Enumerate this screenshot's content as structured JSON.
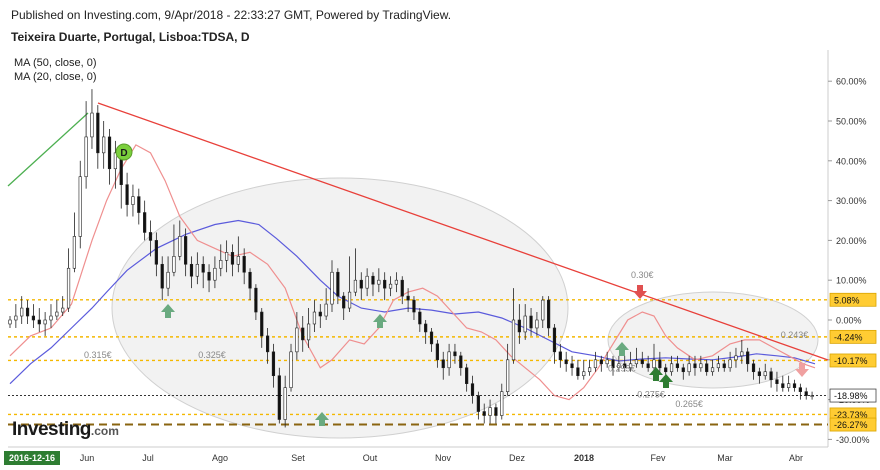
{
  "header": {
    "published": "Published on Investing.com, 9/Apr/2018 - 22:33:27 GMT, Powered by TradingView.",
    "title": "Teixeira Duarte, Portugal, Lisboa:TDSA, D"
  },
  "legend": {
    "ma50": "MA (50, close, 0)",
    "ma20": "MA (20, close, 0)"
  },
  "logo": {
    "word": "Investing",
    "domain": ".com"
  },
  "colors": {
    "candle_up": "#ffffff",
    "candle_down": "#111111",
    "ma50": "#5b5bdc",
    "ma20": "#ef8f8f",
    "trend_down": "#e8403a",
    "trend_up": "#4caf50",
    "level_dotted": "#f4b800",
    "level_dashed": "#8a6410",
    "label_bg": "#ffcc33",
    "date_label_bg": "#2e7d32",
    "arrow_green": "#6aaa80",
    "arrow_darkgreen": "#2e7d32",
    "arrow_red": "#e05050",
    "arrow_pink": "#f0a0a0",
    "marker_d": "#7bcf3c"
  },
  "chart_data": {
    "type": "candlestick",
    "x_labels": [
      "2016-12-16",
      "Jun",
      "Jul",
      "Ago",
      "Set",
      "Out",
      "Nov",
      "Dez",
      "2018",
      "Fev",
      "Mar",
      "Abr"
    ],
    "highlighted_x_label": "2016-12-16",
    "y_axis": {
      "unit": "percent",
      "ticks": [
        60,
        50,
        40,
        30,
        20,
        10,
        0,
        -10,
        -20,
        -30
      ],
      "tick_labels": [
        "60.00%",
        "50.00%",
        "40.00%",
        "30.00%",
        "20.00%",
        "10.00%",
        "0.00%",
        "-10.00%",
        "-20.00%",
        "-30.00%"
      ],
      "range": [
        -31.5,
        63
      ]
    },
    "y_axis_highlight_labels": [
      {
        "value": 5.08,
        "text": "5.08%",
        "style": "yellow"
      },
      {
        "value": -4.24,
        "text": "-4.24%",
        "style": "yellow"
      },
      {
        "value": -10.17,
        "text": "-10.17%",
        "style": "yellow"
      },
      {
        "value": -18.98,
        "text": "-18.98%",
        "style": "white"
      },
      {
        "value": -23.73,
        "text": "-23.73%",
        "style": "yellow"
      },
      {
        "value": -26.27,
        "text": "-26.27%",
        "style": "yellow"
      }
    ],
    "horizontal_levels": [
      {
        "value": 5.08,
        "style": "dotted"
      },
      {
        "value": -4.24,
        "style": "dotted"
      },
      {
        "value": -10.17,
        "style": "dotted"
      },
      {
        "value": -18.98,
        "style": "dotted-black"
      },
      {
        "value": -23.73,
        "style": "dotted"
      },
      {
        "value": -26.27,
        "style": "dashed"
      }
    ],
    "annotations": [
      {
        "text": "0.30€",
        "x": 216,
        "y": 10.5
      },
      {
        "text": "0.315€",
        "x": 30,
        "y": -9.5
      },
      {
        "text": "0.325€",
        "x": 69,
        "y": -9.5
      },
      {
        "text": "0.295€",
        "x": 209,
        "y": -13
      },
      {
        "text": "0.275€",
        "x": 219,
        "y": -19.5
      },
      {
        "text": "0.265€",
        "x": 232,
        "y": -21.8
      },
      {
        "text": "0.243€",
        "x": 268,
        "y": -4.5
      }
    ],
    "series": {
      "ma50": [
        [
          0,
          -16
        ],
        [
          7,
          -11
        ],
        [
          14,
          -7
        ],
        [
          21,
          -2
        ],
        [
          28,
          3
        ],
        [
          33,
          7
        ],
        [
          40,
          12.5
        ],
        [
          50,
          18
        ],
        [
          60,
          21.5
        ],
        [
          70,
          24
        ],
        [
          78,
          25
        ],
        [
          85,
          24
        ],
        [
          91,
          20.5
        ],
        [
          98,
          16
        ],
        [
          106,
          10
        ],
        [
          112,
          6
        ],
        [
          120,
          3
        ],
        [
          128,
          2
        ],
        [
          136,
          3
        ],
        [
          144,
          2.5
        ],
        [
          152,
          1.5
        ],
        [
          160,
          2
        ],
        [
          168,
          0.5
        ],
        [
          176,
          -2
        ],
        [
          184,
          -5
        ],
        [
          192,
          -8
        ],
        [
          200,
          -9
        ],
        [
          208,
          -10.3
        ],
        [
          216,
          -9.8
        ],
        [
          224,
          -9.5
        ],
        [
          232,
          -9.8
        ],
        [
          240,
          -10
        ],
        [
          248,
          -9.3
        ],
        [
          255,
          -8.5
        ],
        [
          262,
          -9
        ],
        [
          268,
          -9.5
        ],
        [
          275,
          -11
        ]
      ],
      "ma20": [
        [
          0,
          -9
        ],
        [
          7,
          -4
        ],
        [
          14,
          -2
        ],
        [
          21,
          4
        ],
        [
          28,
          20
        ],
        [
          33,
          30
        ],
        [
          38,
          38
        ],
        [
          43,
          44
        ],
        [
          48,
          42
        ],
        [
          53,
          35
        ],
        [
          58,
          26
        ],
        [
          64,
          20
        ],
        [
          70,
          18
        ],
        [
          76,
          16
        ],
        [
          82,
          17
        ],
        [
          88,
          14
        ],
        [
          94,
          8
        ],
        [
          100,
          -4
        ],
        [
          106,
          -12
        ],
        [
          110,
          -10
        ],
        [
          116,
          -5
        ],
        [
          121,
          -6
        ],
        [
          126,
          -2
        ],
        [
          131,
          5
        ],
        [
          136,
          7
        ],
        [
          141,
          8
        ],
        [
          146,
          6
        ],
        [
          151,
          2
        ],
        [
          156,
          -2
        ],
        [
          161,
          -3
        ],
        [
          166,
          -5
        ],
        [
          171,
          -9
        ],
        [
          176,
          -12
        ],
        [
          181,
          -15
        ],
        [
          186,
          -19
        ],
        [
          191,
          -20
        ],
        [
          196,
          -17
        ],
        [
          201,
          -12
        ],
        [
          206,
          -6
        ],
        [
          211,
          0
        ],
        [
          216,
          2
        ],
        [
          220,
          1
        ],
        [
          224,
          -4
        ],
        [
          228,
          -7
        ],
        [
          234,
          -10
        ],
        [
          240,
          -9
        ],
        [
          246,
          -6
        ],
        [
          251,
          -5
        ],
        [
          256,
          -5
        ],
        [
          261,
          -7
        ],
        [
          266,
          -9
        ],
        [
          271,
          -11
        ],
        [
          275,
          -12
        ]
      ]
    },
    "candles": [
      [
        0,
        -1,
        0,
        1,
        -2
      ],
      [
        2,
        0,
        1,
        4,
        -2
      ],
      [
        4,
        1,
        3,
        6,
        -1
      ],
      [
        6,
        3,
        1,
        5,
        -1
      ],
      [
        8,
        1,
        0,
        4,
        -2
      ],
      [
        10,
        0,
        -1,
        3,
        -3
      ],
      [
        12,
        -1,
        0,
        2,
        -4
      ],
      [
        14,
        0,
        1,
        4,
        -2
      ],
      [
        16,
        1,
        2,
        5,
        0
      ],
      [
        18,
        2,
        3,
        6,
        1
      ],
      [
        20,
        3,
        13,
        18,
        2
      ],
      [
        22,
        13,
        21,
        27,
        12
      ],
      [
        24,
        21,
        36,
        40,
        18
      ],
      [
        26,
        36,
        46,
        55,
        33
      ],
      [
        28,
        46,
        52,
        58,
        43
      ],
      [
        30,
        52,
        42,
        54,
        38
      ],
      [
        32,
        42,
        46,
        50,
        38
      ],
      [
        34,
        46,
        38,
        48,
        34
      ],
      [
        36,
        38,
        42,
        45,
        33
      ],
      [
        38,
        42,
        34,
        44,
        28
      ],
      [
        40,
        34,
        29,
        37,
        26
      ],
      [
        42,
        29,
        31,
        34,
        26
      ],
      [
        44,
        31,
        27,
        33,
        24
      ],
      [
        46,
        27,
        22,
        30,
        20
      ],
      [
        48,
        22,
        20,
        25,
        16
      ],
      [
        50,
        20,
        14,
        22,
        11
      ],
      [
        52,
        14,
        8,
        16,
        5
      ],
      [
        54,
        8,
        12,
        16,
        6
      ],
      [
        56,
        12,
        16,
        24,
        11
      ],
      [
        58,
        16,
        21,
        25,
        15
      ],
      [
        60,
        21,
        14,
        23,
        11
      ],
      [
        62,
        14,
        11,
        16,
        8
      ],
      [
        64,
        11,
        14,
        17,
        9
      ],
      [
        66,
        14,
        12,
        16,
        8
      ],
      [
        68,
        12,
        10,
        14,
        7
      ],
      [
        70,
        10,
        13,
        16,
        8
      ],
      [
        72,
        13,
        15,
        19,
        11
      ],
      [
        74,
        15,
        17,
        20,
        12
      ],
      [
        76,
        17,
        14,
        19,
        11
      ],
      [
        78,
        14,
        16,
        21,
        12
      ],
      [
        80,
        16,
        12,
        18,
        9
      ],
      [
        82,
        12,
        8,
        13,
        5
      ],
      [
        84,
        8,
        2,
        9,
        0
      ],
      [
        86,
        2,
        -4,
        3,
        -7
      ],
      [
        88,
        -4,
        -8,
        -2,
        -11
      ],
      [
        90,
        -8,
        -14,
        -6,
        -17
      ],
      [
        92,
        -14,
        -25,
        -12,
        -26
      ],
      [
        94,
        -25,
        -17,
        -14,
        -27
      ],
      [
        96,
        -17,
        -8,
        -6,
        -18
      ],
      [
        98,
        -8,
        -2,
        2,
        -10
      ],
      [
        100,
        -2,
        -5,
        1,
        -8
      ],
      [
        102,
        -5,
        -1,
        3,
        -7
      ],
      [
        104,
        -1,
        2,
        5,
        -3
      ],
      [
        106,
        2,
        1,
        4,
        -2
      ],
      [
        108,
        1,
        4,
        8,
        0
      ],
      [
        110,
        4,
        12,
        15,
        2
      ],
      [
        112,
        12,
        6,
        13,
        4
      ],
      [
        114,
        6,
        3,
        7,
        0
      ],
      [
        116,
        3,
        7,
        16,
        2
      ],
      [
        118,
        7,
        10,
        18,
        6
      ],
      [
        120,
        10,
        8,
        12,
        5
      ],
      [
        122,
        8,
        11,
        13,
        6
      ],
      [
        124,
        11,
        9,
        12,
        6
      ],
      [
        126,
        9,
        10,
        13,
        7
      ],
      [
        128,
        10,
        8,
        12,
        5
      ],
      [
        130,
        8,
        9,
        11,
        6
      ],
      [
        132,
        9,
        10,
        12,
        7
      ],
      [
        134,
        10,
        6,
        11,
        4
      ],
      [
        136,
        6,
        5,
        8,
        2
      ],
      [
        138,
        5,
        2,
        6,
        0
      ],
      [
        140,
        2,
        -1,
        3,
        -3
      ],
      [
        142,
        -1,
        -3,
        0,
        -6
      ],
      [
        144,
        -3,
        -6,
        -2,
        -8
      ],
      [
        146,
        -6,
        -10,
        -5,
        -12
      ],
      [
        148,
        -10,
        -12,
        -8,
        -15
      ],
      [
        150,
        -12,
        -8,
        -6,
        -14
      ],
      [
        152,
        -8,
        -9,
        -6,
        -11
      ],
      [
        154,
        -9,
        -12,
        -8,
        -14
      ],
      [
        156,
        -12,
        -16,
        -11,
        -18
      ],
      [
        158,
        -16,
        -19,
        -14,
        -21
      ],
      [
        160,
        -19,
        -23,
        -18,
        -25
      ],
      [
        162,
        -23,
        -24,
        -21,
        -26
      ],
      [
        164,
        -24,
        -22,
        -20,
        -26
      ],
      [
        166,
        -22,
        -24,
        -21,
        -26
      ],
      [
        168,
        -24,
        -18,
        -16,
        -25
      ],
      [
        170,
        -18,
        -10,
        -6,
        -19
      ],
      [
        172,
        -10,
        0,
        8,
        -11
      ],
      [
        174,
        0,
        -3,
        4,
        -6
      ],
      [
        176,
        -3,
        1,
        4,
        -5
      ],
      [
        178,
        1,
        -2,
        3,
        -4
      ],
      [
        180,
        -2,
        0,
        2,
        -4
      ],
      [
        182,
        0,
        5,
        6,
        -2
      ],
      [
        184,
        5,
        -2,
        6,
        -4
      ],
      [
        186,
        -2,
        -8,
        -1,
        -11
      ],
      [
        188,
        -8,
        -10,
        -6,
        -12
      ],
      [
        190,
        -10,
        -11,
        -8,
        -13
      ],
      [
        192,
        -11,
        -12,
        -9,
        -14
      ],
      [
        194,
        -12,
        -14,
        -10,
        -15
      ],
      [
        196,
        -14,
        -13,
        -10,
        -15
      ],
      [
        198,
        -13,
        -12,
        -10,
        -14
      ],
      [
        200,
        -12,
        -10,
        -8,
        -13
      ],
      [
        202,
        -10,
        -11,
        -9,
        -13
      ],
      [
        204,
        -11,
        -10,
        -8,
        -12
      ],
      [
        206,
        -10,
        -12,
        -9,
        -14
      ],
      [
        208,
        -12,
        -11,
        -9,
        -13
      ],
      [
        210,
        -11,
        -12,
        -9,
        -13
      ],
      [
        212,
        -12,
        -11,
        -8,
        -13
      ],
      [
        214,
        -11,
        -10,
        -7,
        -12
      ],
      [
        216,
        -10,
        -11,
        -8,
        -12
      ],
      [
        218,
        -11,
        -12,
        -9,
        -13
      ],
      [
        220,
        -12,
        -10,
        -6,
        -13
      ],
      [
        222,
        -10,
        -12,
        -8,
        -13
      ],
      [
        224,
        -12,
        -13,
        -11,
        -14
      ],
      [
        226,
        -13,
        -11,
        -9,
        -14
      ],
      [
        228,
        -11,
        -12,
        -9,
        -13
      ],
      [
        230,
        -12,
        -13,
        -11,
        -15
      ],
      [
        232,
        -13,
        -11,
        -9,
        -14
      ],
      [
        234,
        -11,
        -12,
        -9,
        -14
      ],
      [
        236,
        -12,
        -11,
        -9,
        -13
      ],
      [
        238,
        -11,
        -13,
        -10,
        -14
      ],
      [
        240,
        -13,
        -12,
        -10,
        -14
      ],
      [
        242,
        -12,
        -11,
        -9,
        -13
      ],
      [
        244,
        -11,
        -12,
        -10,
        -13
      ],
      [
        246,
        -12,
        -10,
        -8,
        -13
      ],
      [
        248,
        -10,
        -9,
        -7,
        -12
      ],
      [
        250,
        -9,
        -8,
        -5,
        -11
      ],
      [
        252,
        -8,
        -11,
        -7,
        -13
      ],
      [
        254,
        -11,
        -13,
        -10,
        -15
      ],
      [
        256,
        -13,
        -14,
        -12,
        -16
      ],
      [
        258,
        -14,
        -13,
        -11,
        -15
      ],
      [
        260,
        -13,
        -15,
        -12,
        -17
      ],
      [
        262,
        -15,
        -16,
        -13,
        -18
      ],
      [
        264,
        -16,
        -17,
        -14,
        -18
      ],
      [
        266,
        -17,
        -16,
        -14,
        -18
      ],
      [
        268,
        -16,
        -17,
        -15,
        -18
      ],
      [
        270,
        -17,
        -18,
        -16,
        -20
      ],
      [
        272,
        -18,
        -19,
        -17,
        -20
      ],
      [
        274,
        -19,
        -19,
        -18,
        -20
      ]
    ]
  }
}
